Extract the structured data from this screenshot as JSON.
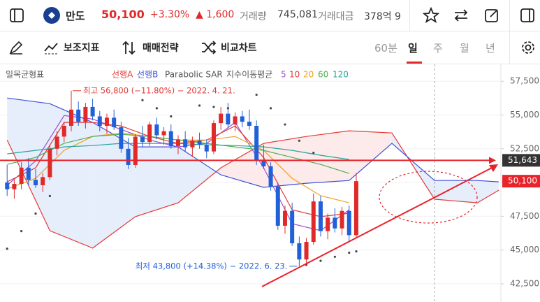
{
  "header": {
    "name": "만도",
    "price": "50,100",
    "change_pct": "+3.30%",
    "change": "▲ 1,600",
    "volume_label": "거래량",
    "volume": "745,081",
    "amount_label": "거래대금",
    "amount": "378억 9"
  },
  "toolbar": {
    "items": [
      "보조지표",
      "매매전략",
      "비교차트"
    ],
    "periods": [
      "60분",
      "일",
      "주",
      "월",
      "년"
    ]
  },
  "chart_data": {
    "type": "candlestick",
    "indicator_title": "일목균형표",
    "up_color": "#e02a2a",
    "down_color": "#2060d8",
    "candles": {
      "open": [
        50000,
        49500,
        49900,
        51100,
        50200,
        49800,
        50400,
        52500,
        53400,
        54200,
        55400,
        54500,
        55600,
        54900,
        54200,
        54800,
        54100,
        52500,
        51300,
        53400,
        53000,
        54300,
        53500,
        53800,
        52700,
        53200,
        52600,
        53100,
        52800,
        52300,
        54400,
        55100,
        54300,
        54900,
        54500,
        54200,
        51600,
        51200,
        49700,
        46800,
        47900,
        45500,
        44300,
        45600,
        48600,
        46400,
        47400,
        46600,
        47900,
        46100
      ],
      "high": [
        51300,
        50200,
        51500,
        51800,
        51000,
        50700,
        52800,
        53800,
        54500,
        56800,
        56000,
        55900,
        56200,
        55300,
        55100,
        55400,
        54500,
        53300,
        53600,
        54200,
        54500,
        54800,
        54100,
        54300,
        53500,
        53800,
        53400,
        53700,
        53200,
        54600,
        55600,
        55900,
        55200,
        55300,
        55400,
        54600,
        52800,
        51500,
        50000,
        48300,
        48500,
        46000,
        45900,
        49200,
        49000,
        47700,
        48100,
        48200,
        48300,
        50700
      ],
      "low": [
        49000,
        48800,
        49500,
        49800,
        49600,
        49300,
        50200,
        52000,
        53000,
        53800,
        54200,
        54000,
        54600,
        53800,
        53600,
        53900,
        52200,
        51000,
        51100,
        52600,
        52700,
        53200,
        52800,
        52500,
        52100,
        52300,
        51900,
        52500,
        51800,
        52100,
        53900,
        54000,
        53800,
        54100,
        53900,
        51300,
        51000,
        49400,
        46500,
        46200,
        45300,
        43800,
        44000,
        45400,
        46000,
        45800,
        46300,
        46100,
        45600,
        45900
      ],
      "close": [
        49500,
        49900,
        51100,
        50200,
        49800,
        50400,
        52500,
        53400,
        54200,
        55400,
        54500,
        55600,
        54900,
        54200,
        54800,
        54100,
        52500,
        51300,
        53400,
        53000,
        54300,
        53500,
        53800,
        52700,
        53200,
        52600,
        53100,
        52800,
        52300,
        54400,
        55100,
        54300,
        54900,
        54500,
        54200,
        51600,
        51200,
        49700,
        46800,
        47900,
        45500,
        44300,
        45600,
        48600,
        46400,
        47400,
        46600,
        47900,
        46100,
        50100
      ]
    },
    "ichimoku": {
      "x": [
        0,
        6,
        12,
        18,
        24,
        30,
        36,
        42,
        48,
        54,
        60,
        66,
        69
      ],
      "series": [
        {
          "name": "선행A",
          "color": "#e53935",
          "values": [
            53150,
            46430,
            45140,
            47470,
            48500,
            51090,
            52900,
            53410,
            53830,
            53670,
            48760,
            48500,
            49430
          ]
        },
        {
          "name": "선행B",
          "color": "#3f51d8",
          "values": [
            56260,
            55840,
            54450,
            52640,
            52640,
            50570,
            49640,
            49950,
            50150,
            52900,
            50150,
            50150,
            50050
          ]
        }
      ]
    },
    "sar": {
      "name": "Parabolic SAR",
      "color": "#444",
      "x": [
        0,
        2,
        4,
        6,
        19,
        21,
        23,
        27,
        29,
        31,
        35,
        37,
        39,
        41,
        43,
        42,
        44,
        46,
        48,
        49
      ],
      "values": [
        45100,
        46400,
        47700,
        49000,
        56100,
        55500,
        54900,
        55700,
        55600,
        55500,
        56500,
        55500,
        54300,
        53100,
        52200,
        43900,
        44200,
        44500,
        44800,
        44900
      ]
    },
    "ema": {
      "name": "지수이동평균",
      "x": [
        0,
        4,
        8,
        12,
        16,
        20,
        24,
        28,
        32,
        36,
        40,
        44,
        48
      ],
      "series": [
        {
          "name": "5",
          "color": "#9c4fd6",
          "values": [
            49790,
            51600,
            54960,
            54700,
            53930,
            53150,
            52640,
            52900,
            54450,
            51090,
            46950,
            46430,
            47980
          ]
        },
        {
          "name": "10",
          "color": "#e53935",
          "values": [
            50050,
            51090,
            54450,
            54450,
            54190,
            53410,
            52900,
            53150,
            54190,
            51860,
            47980,
            47470,
            47720
          ]
        },
        {
          "name": "20",
          "color": "#f0a020",
          "values": [
            49530,
            50310,
            52380,
            53410,
            53670,
            53410,
            53150,
            53150,
            53410,
            52380,
            50310,
            49020,
            48500
          ]
        },
        {
          "name": "60",
          "color": "#4caf50",
          "values": [
            51340,
            51860,
            52900,
            53410,
            53570,
            53410,
            53150,
            52900,
            52640,
            52380,
            51860,
            51340,
            50670
          ]
        },
        {
          "name": "120",
          "color": "#26a69a",
          "values": [
            52120,
            52380,
            52640,
            52740,
            52900,
            52900,
            52900,
            52790,
            52740,
            52640,
            52380,
            52020,
            51710
          ]
        }
      ]
    },
    "high_label": "최고 56,800 (−11.80%) − 2022. 4. 21.",
    "low_label": "최저 43,800 (+14.38%) − 2022. 6. 23.",
    "ref_price": {
      "value": 51643,
      "label": "51,643"
    },
    "last_price": {
      "value": 50100,
      "label": "50,100"
    },
    "xlim": [
      -1,
      69.3
    ],
    "ylim": [
      41150,
      58600
    ],
    "yticks": [
      {
        "value": 42500,
        "label": "42,500"
      },
      {
        "value": 45000,
        "label": "45,000"
      },
      {
        "value": 47500,
        "label": "47,500"
      },
      {
        "value": 50000,
        "label": "50,000"
      },
      {
        "value": 52500,
        "label": "52,500"
      },
      {
        "value": 55000,
        "label": "55,000"
      },
      {
        "value": 57500,
        "label": "57,500"
      }
    ],
    "grid": true
  }
}
